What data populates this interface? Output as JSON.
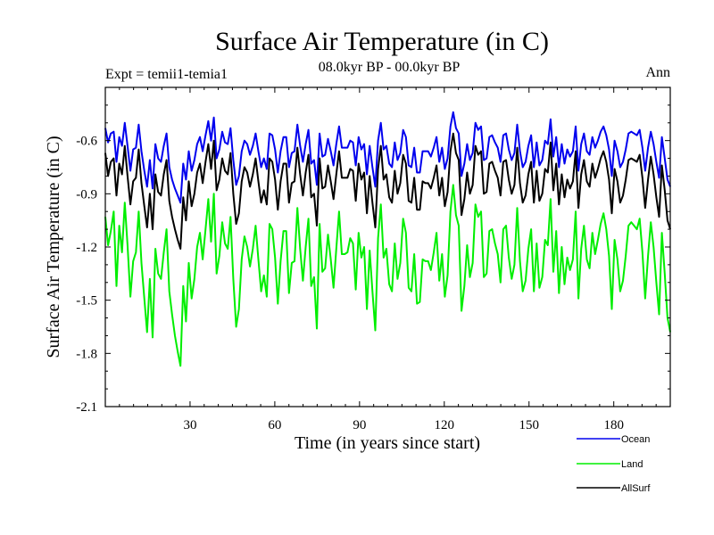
{
  "chart_data": {
    "type": "line",
    "title": "Surface Air Temperature (in C)",
    "subtitle": "08.0kyr BP - 00.0kyr BP",
    "experiment_label": "Expt = temii1-temia1",
    "period_label": "Ann",
    "xlabel": "Time (in years since start)",
    "ylabel": "Surface Air Temperature (in C)",
    "xlim": [
      0,
      200
    ],
    "ylim": [
      -2.1,
      -0.3
    ],
    "xticks": [
      30,
      60,
      90,
      120,
      150,
      180
    ],
    "yticks": [
      -2.1,
      -1.8,
      -1.5,
      -1.2,
      -0.9,
      -0.6
    ],
    "legend_position": "bottom-right",
    "series": [
      {
        "name": "Ocean",
        "color": "#0000ee",
        "values": [
          -0.53,
          -0.61,
          -0.56,
          -0.55,
          -0.72,
          -0.58,
          -0.63,
          -0.5,
          -0.63,
          -0.77,
          -0.65,
          -0.64,
          -0.51,
          -0.66,
          -0.77,
          -0.86,
          -0.71,
          -0.87,
          -0.62,
          -0.7,
          -0.72,
          -0.63,
          -0.56,
          -0.75,
          -0.82,
          -0.87,
          -0.91,
          -0.95,
          -0.73,
          -0.82,
          -0.66,
          -0.77,
          -0.71,
          -0.62,
          -0.58,
          -0.66,
          -0.57,
          -0.49,
          -0.6,
          -0.47,
          -0.7,
          -0.65,
          -0.55,
          -0.61,
          -0.62,
          -0.53,
          -0.71,
          -0.85,
          -0.8,
          -0.66,
          -0.6,
          -0.62,
          -0.68,
          -0.63,
          -0.56,
          -0.66,
          -0.75,
          -0.7,
          -0.76,
          -0.56,
          -0.57,
          -0.65,
          -0.78,
          -0.66,
          -0.58,
          -0.58,
          -0.75,
          -0.67,
          -0.66,
          -0.51,
          -0.63,
          -0.72,
          -0.62,
          -0.54,
          -0.73,
          -0.71,
          -0.85,
          -0.56,
          -0.69,
          -0.68,
          -0.59,
          -0.66,
          -0.74,
          -0.62,
          -0.52,
          -0.64,
          -0.64,
          -0.64,
          -0.6,
          -0.61,
          -0.74,
          -0.58,
          -0.65,
          -0.62,
          -0.79,
          -0.63,
          -0.75,
          -0.86,
          -0.6,
          -0.5,
          -0.65,
          -0.63,
          -0.73,
          -0.75,
          -0.61,
          -0.71,
          -0.67,
          -0.54,
          -0.58,
          -0.74,
          -0.75,
          -0.64,
          -0.78,
          -0.78,
          -0.66,
          -0.66,
          -0.66,
          -0.69,
          -0.64,
          -0.58,
          -0.72,
          -0.64,
          -0.76,
          -0.7,
          -0.52,
          -0.44,
          -0.53,
          -0.56,
          -0.8,
          -0.73,
          -0.62,
          -0.71,
          -0.67,
          -0.5,
          -0.54,
          -0.52,
          -0.71,
          -0.7,
          -0.58,
          -0.57,
          -0.61,
          -0.64,
          -0.72,
          -0.57,
          -0.56,
          -0.65,
          -0.71,
          -0.67,
          -0.51,
          -0.66,
          -0.75,
          -0.72,
          -0.63,
          -0.57,
          -0.75,
          -0.61,
          -0.74,
          -0.71,
          -0.6,
          -0.62,
          -0.48,
          -0.69,
          -0.58,
          -0.75,
          -0.62,
          -0.73,
          -0.65,
          -0.69,
          -0.66,
          -0.52,
          -0.77,
          -0.62,
          -0.56,
          -0.66,
          -0.68,
          -0.58,
          -0.64,
          -0.6,
          -0.55,
          -0.52,
          -0.57,
          -0.65,
          -0.8,
          -0.6,
          -0.66,
          -0.75,
          -0.72,
          -0.65,
          -0.56,
          -0.55,
          -0.56,
          -0.57,
          -0.54,
          -0.64,
          -0.77,
          -0.64,
          -0.55,
          -0.62,
          -0.72,
          -0.81,
          -0.58,
          -0.7,
          -0.82,
          -0.86
        ]
      },
      {
        "name": "Land",
        "color": "#00ee00",
        "values": [
          -1.03,
          -1.19,
          -1.11,
          -1.0,
          -1.42,
          -1.08,
          -1.23,
          -0.95,
          -1.19,
          -1.48,
          -1.28,
          -1.23,
          -1.0,
          -1.29,
          -1.49,
          -1.68,
          -1.38,
          -1.71,
          -1.21,
          -1.35,
          -1.38,
          -1.23,
          -1.1,
          -1.45,
          -1.58,
          -1.7,
          -1.79,
          -1.87,
          -1.42,
          -1.62,
          -1.29,
          -1.49,
          -1.38,
          -1.2,
          -1.12,
          -1.27,
          -1.1,
          -0.93,
          -1.17,
          -0.9,
          -1.35,
          -1.25,
          -1.06,
          -1.18,
          -1.21,
          -1.03,
          -1.38,
          -1.65,
          -1.55,
          -1.27,
          -1.14,
          -1.2,
          -1.31,
          -1.21,
          -1.08,
          -1.27,
          -1.45,
          -1.36,
          -1.48,
          -1.07,
          -1.1,
          -1.26,
          -1.52,
          -1.28,
          -1.11,
          -1.11,
          -1.46,
          -1.29,
          -1.28,
          -0.98,
          -1.21,
          -1.39,
          -1.2,
          -1.04,
          -1.42,
          -1.37,
          -1.66,
          -1.07,
          -1.34,
          -1.32,
          -1.13,
          -1.27,
          -1.43,
          -1.21,
          -1.0,
          -1.24,
          -1.24,
          -1.23,
          -1.15,
          -1.18,
          -1.44,
          -1.12,
          -1.26,
          -1.2,
          -1.55,
          -1.22,
          -1.45,
          -1.67,
          -1.15,
          -0.96,
          -1.26,
          -1.21,
          -1.41,
          -1.45,
          -1.18,
          -1.38,
          -1.29,
          -1.04,
          -1.12,
          -1.43,
          -1.45,
          -1.24,
          -1.52,
          -1.51,
          -1.27,
          -1.28,
          -1.28,
          -1.33,
          -1.23,
          -1.12,
          -1.39,
          -1.24,
          -1.48,
          -1.36,
          -1.0,
          -0.85,
          -1.02,
          -1.08,
          -1.56,
          -1.42,
          -1.19,
          -1.37,
          -1.29,
          -0.96,
          -1.03,
          -1.0,
          -1.37,
          -1.35,
          -1.11,
          -1.1,
          -1.18,
          -1.24,
          -1.4,
          -1.1,
          -1.08,
          -1.26,
          -1.38,
          -1.3,
          -0.98,
          -1.28,
          -1.45,
          -1.39,
          -1.21,
          -1.1,
          -1.45,
          -1.18,
          -1.43,
          -1.37,
          -1.16,
          -1.19,
          -0.93,
          -1.34,
          -1.11,
          -1.46,
          -1.2,
          -1.41,
          -1.26,
          -1.33,
          -1.27,
          -1.0,
          -1.49,
          -1.21,
          -1.08,
          -1.27,
          -1.32,
          -1.12,
          -1.24,
          -1.16,
          -1.07,
          -1.01,
          -1.1,
          -1.25,
          -1.55,
          -1.16,
          -1.27,
          -1.45,
          -1.39,
          -1.25,
          -1.08,
          -1.06,
          -1.08,
          -1.1,
          -1.04,
          -1.23,
          -1.49,
          -1.25,
          -1.06,
          -1.2,
          -1.4,
          -1.58,
          -1.12,
          -1.35,
          -1.6,
          -1.68
        ]
      },
      {
        "name": "AllSurf",
        "color": "#000000",
        "values": [
          -0.67,
          -0.8,
          -0.72,
          -0.7,
          -0.91,
          -0.73,
          -0.79,
          -0.63,
          -0.8,
          -0.96,
          -0.83,
          -0.81,
          -0.65,
          -0.84,
          -0.97,
          -1.09,
          -0.9,
          -1.1,
          -0.79,
          -0.89,
          -0.91,
          -0.79,
          -0.71,
          -0.94,
          -1.03,
          -1.1,
          -1.16,
          -1.21,
          -0.92,
          -1.05,
          -0.83,
          -0.97,
          -0.9,
          -0.78,
          -0.73,
          -0.84,
          -0.72,
          -0.62,
          -0.76,
          -0.6,
          -0.88,
          -0.82,
          -0.7,
          -0.77,
          -0.79,
          -0.67,
          -0.9,
          -1.07,
          -1.01,
          -0.83,
          -0.75,
          -0.78,
          -0.86,
          -0.79,
          -0.7,
          -0.83,
          -0.95,
          -0.88,
          -0.96,
          -0.7,
          -0.72,
          -0.82,
          -0.99,
          -0.83,
          -0.73,
          -0.73,
          -0.95,
          -0.84,
          -0.83,
          -0.64,
          -0.79,
          -0.91,
          -0.78,
          -0.68,
          -0.92,
          -0.9,
          -1.08,
          -0.7,
          -0.87,
          -0.86,
          -0.74,
          -0.83,
          -0.93,
          -0.79,
          -0.66,
          -0.81,
          -0.81,
          -0.81,
          -0.76,
          -0.77,
          -0.94,
          -0.73,
          -0.82,
          -0.78,
          -1.01,
          -0.8,
          -0.95,
          -1.09,
          -0.76,
          -0.63,
          -0.82,
          -0.79,
          -0.92,
          -0.95,
          -0.77,
          -0.9,
          -0.84,
          -0.68,
          -0.73,
          -0.94,
          -0.95,
          -0.81,
          -0.99,
          -0.99,
          -0.83,
          -0.84,
          -0.84,
          -0.87,
          -0.81,
          -0.74,
          -0.91,
          -0.81,
          -0.97,
          -0.89,
          -0.66,
          -0.56,
          -0.67,
          -0.71,
          -1.02,
          -0.93,
          -0.78,
          -0.9,
          -0.85,
          -0.63,
          -0.68,
          -0.66,
          -0.9,
          -0.89,
          -0.73,
          -0.72,
          -0.77,
          -0.81,
          -0.91,
          -0.72,
          -0.71,
          -0.82,
          -0.9,
          -0.85,
          -0.64,
          -0.84,
          -0.95,
          -0.91,
          -0.79,
          -0.72,
          -0.95,
          -0.77,
          -0.94,
          -0.9,
          -0.76,
          -0.78,
          -0.61,
          -0.88,
          -0.73,
          -0.96,
          -0.79,
          -0.92,
          -0.82,
          -0.87,
          -0.83,
          -0.66,
          -0.98,
          -0.79,
          -0.71,
          -0.83,
          -0.86,
          -0.73,
          -0.81,
          -0.76,
          -0.7,
          -0.66,
          -0.72,
          -0.82,
          -1.01,
          -0.76,
          -0.83,
          -0.95,
          -0.91,
          -0.82,
          -0.71,
          -0.7,
          -0.71,
          -0.72,
          -0.68,
          -0.81,
          -0.98,
          -0.82,
          -0.69,
          -0.79,
          -0.92,
          -1.03,
          -0.74,
          -0.88,
          -1.05,
          -1.1
        ]
      }
    ]
  }
}
